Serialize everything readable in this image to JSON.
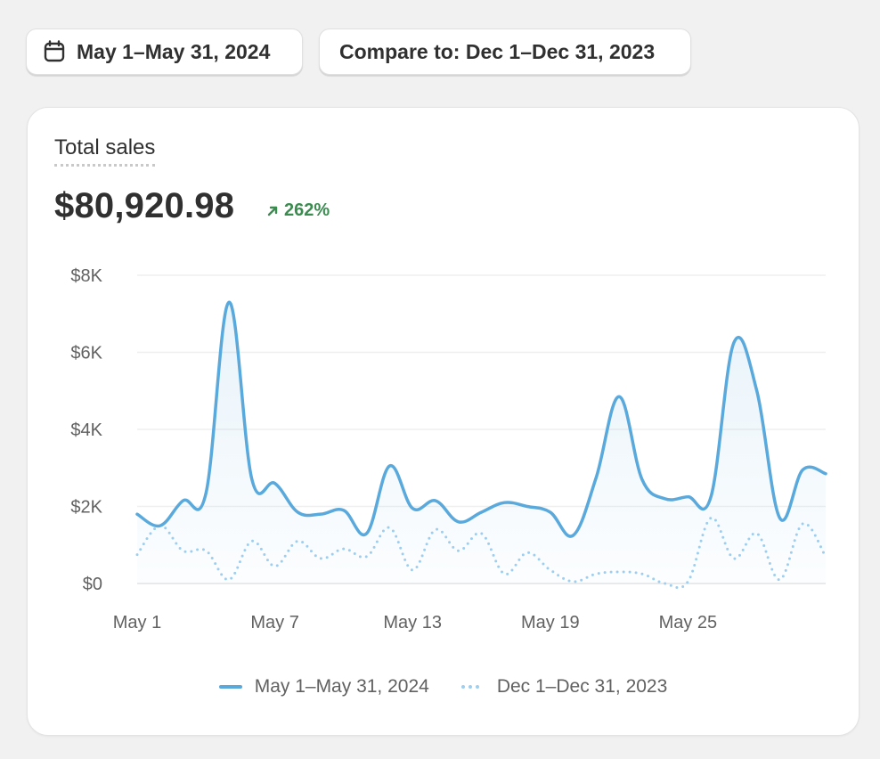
{
  "date_range": {
    "label": "May 1–May 31, 2024"
  },
  "compare": {
    "label": "Compare to: Dec 1–Dec 31, 2023"
  },
  "card": {
    "title": "Total sales",
    "total": "$80,920.98",
    "delta": "262%"
  },
  "colors": {
    "primary": "#5aa9dc",
    "comparison": "#9fcff0",
    "positive": "#3a8c4f"
  },
  "chart_data": {
    "type": "line",
    "y_tick_labels": [
      "$0",
      "$2K",
      "$4K",
      "$6K",
      "$8K"
    ],
    "y_ticks": [
      0,
      2000,
      4000,
      6000,
      8000
    ],
    "ylim": [
      0,
      8000
    ],
    "x_tick_labels": [
      "May 1",
      "May 7",
      "May 13",
      "May 19",
      "May 25"
    ],
    "x_tick_positions": [
      1,
      7,
      13,
      19,
      25
    ],
    "x": [
      1,
      2,
      3,
      4,
      5,
      6,
      7,
      8,
      9,
      10,
      11,
      12,
      13,
      14,
      15,
      16,
      17,
      18,
      19,
      20,
      21,
      22,
      23,
      24,
      25,
      26,
      27,
      28,
      29,
      30,
      31
    ],
    "grid": true,
    "legend_position": "bottom",
    "series": [
      {
        "name": "May 1–May 31, 2024",
        "style": "solid",
        "values": [
          1800,
          1500,
          2150,
          2350,
          7300,
          2700,
          2600,
          1850,
          1800,
          1900,
          1300,
          3050,
          1950,
          2150,
          1600,
          1850,
          2100,
          2000,
          1850,
          1250,
          2750,
          4850,
          2700,
          2200,
          2250,
          2250,
          6250,
          5000,
          1700,
          2950,
          2850
        ]
      },
      {
        "name": "Dec 1–Dec 31, 2023",
        "style": "dotted",
        "values": [
          750,
          1500,
          850,
          850,
          100,
          1100,
          450,
          1100,
          650,
          900,
          700,
          1450,
          350,
          1400,
          850,
          1300,
          250,
          800,
          350,
          50,
          250,
          300,
          250,
          0,
          50,
          1700,
          650,
          1300,
          100,
          1550,
          700
        ]
      }
    ]
  },
  "legend": {
    "current": "May 1–May 31, 2024",
    "comparison": "Dec 1–Dec 31, 2023"
  }
}
